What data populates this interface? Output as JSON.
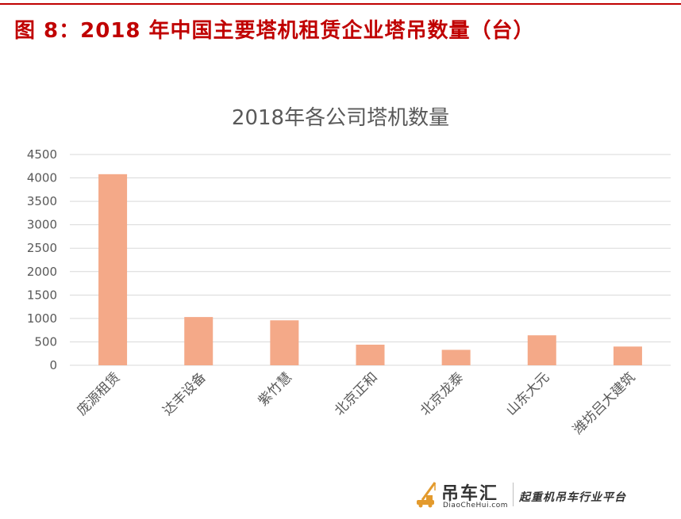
{
  "header": {
    "title": "图 8：2018 年中国主要塔机租赁企业塔吊数量（台）"
  },
  "colors": {
    "accent": "#c00000",
    "bar": "#f4a988",
    "grid": "#d9d9d9",
    "text": "#595959"
  },
  "chart_data": {
    "type": "bar",
    "title": "2018年各公司塔机数量",
    "xlabel": "",
    "ylabel": "",
    "categories": [
      "庞源租赁",
      "达丰设备",
      "紫竹慧",
      "北京正和",
      "北京龙泰",
      "山东大元",
      "潍坊吕大建筑"
    ],
    "values": [
      4080,
      1030,
      960,
      440,
      330,
      640,
      400
    ],
    "ylim": [
      0,
      4500
    ],
    "yticks": [
      0,
      500,
      1000,
      1500,
      2000,
      2500,
      3000,
      3500,
      4000,
      4500
    ],
    "grid": true,
    "legend": "none"
  },
  "footer": {
    "logo_icon": "crane-icon",
    "brand_name": "吊车汇",
    "brand_domain": "DiaoCheHui.com",
    "slogan": "起重机吊车行业平台"
  }
}
